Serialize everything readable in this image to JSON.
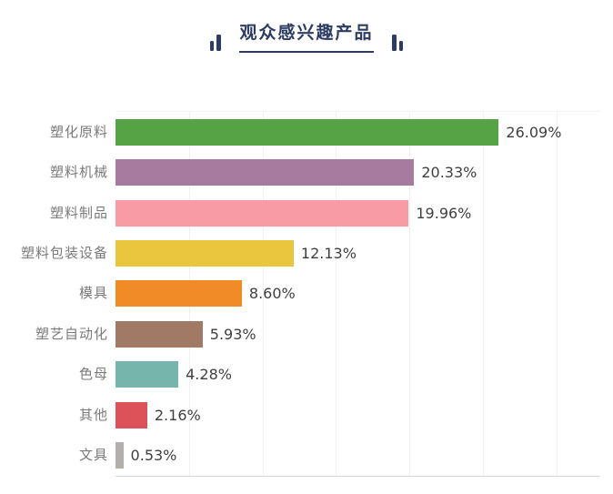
{
  "header": {
    "title": "观众感兴趣产品"
  },
  "chart_data": {
    "type": "bar",
    "orientation": "horizontal",
    "title": "观众感兴趣产品",
    "categories": [
      "塑化原料",
      "塑料机械",
      "塑料制品",
      "塑料包装设备",
      "模具",
      "塑艺自动化",
      "色母",
      "其他",
      "文具"
    ],
    "values": [
      26.09,
      20.33,
      19.96,
      12.13,
      8.6,
      5.93,
      4.28,
      2.16,
      0.53
    ],
    "value_labels": [
      "26.09%",
      "20.33%",
      "19.96%",
      "12.13%",
      "8.60%",
      "5.93%",
      "4.28%",
      "2.16%",
      "0.53%"
    ],
    "bar_colors": [
      "#55a345",
      "#a77ba0",
      "#f99ba5",
      "#e9c63e",
      "#f08b25",
      "#a07a64",
      "#74b6ab",
      "#dd5158",
      "#b4afab"
    ],
    "xlim": [
      0,
      33
    ],
    "gridline_interval": 5,
    "grid": true,
    "legend": false,
    "xlabel": "",
    "ylabel": ""
  },
  "colors": {
    "title_navy": "#2d3c64",
    "axis_line": "#d9d9d9",
    "gridline": "#f1eff1",
    "category_label": "#7a7a7a",
    "value_label": "#3f3f3f",
    "background": "#ffffff"
  }
}
